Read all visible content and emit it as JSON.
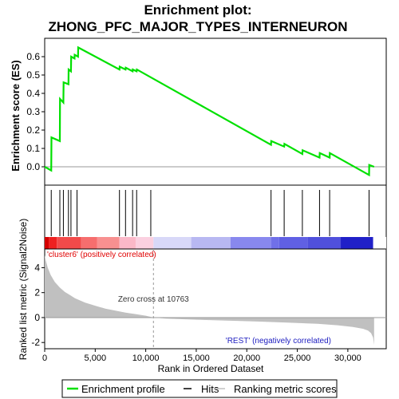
{
  "title_line1": "Enrichment plot:",
  "title_line2": "ZHONG_PFC_MAJOR_TYPES_INTERNEURON",
  "colors": {
    "profile": "#00e000",
    "hits": "#000000",
    "metric": "#c0c0c0",
    "zero_line": "#999999",
    "pos_label": "#e00000",
    "neg_label": "#2020c0"
  },
  "chart_data": {
    "type": "line",
    "title": "Enrichment plot: ZHONG_PFC_MAJOR_TYPES_INTERNEURON",
    "xlabel": "Rank in Ordered Dataset",
    "x_ticks": [
      "0",
      "5,000",
      "10,000",
      "15,000",
      "20,000",
      "25,000",
      "30,000"
    ],
    "x_tick_values": [
      0,
      5000,
      10000,
      15000,
      20000,
      25000,
      30000
    ],
    "xlim": [
      0,
      33800
    ],
    "es_panel": {
      "ylabel": "Enrichment score (ES)",
      "ylim": [
        -0.1,
        0.7
      ],
      "y_ticks": [
        "0.0",
        "0.1",
        "0.2",
        "0.3",
        "0.4",
        "0.5",
        "0.6"
      ],
      "y_tick_values": [
        0,
        0.1,
        0.2,
        0.3,
        0.4,
        0.5,
        0.6
      ],
      "x": [
        0,
        650,
        670,
        1500,
        1520,
        1850,
        1870,
        2350,
        2370,
        2600,
        2620,
        2950,
        2970,
        3300,
        3320,
        7400,
        7420,
        8000,
        8020,
        8700,
        8720,
        9100,
        9120,
        22400,
        22420,
        23700,
        23720,
        25500,
        25520,
        27200,
        27220,
        28200,
        28220,
        32100,
        32120,
        32600
      ],
      "y": [
        0,
        -0.02,
        0.16,
        0.14,
        0.37,
        0.35,
        0.46,
        0.45,
        0.53,
        0.52,
        0.6,
        0.59,
        0.61,
        0.6,
        0.65,
        0.53,
        0.545,
        0.53,
        0.54,
        0.52,
        0.53,
        0.52,
        0.53,
        0.12,
        0.14,
        0.11,
        0.125,
        0.07,
        0.09,
        0.05,
        0.075,
        0.05,
        0.075,
        -0.045,
        0.01,
        0.0
      ]
    },
    "hits": [
      650,
      1500,
      1850,
      2350,
      2600,
      3200,
      7400,
      8000,
      8700,
      9100,
      10500,
      22400,
      23700,
      25500,
      27200,
      28200,
      32100
    ],
    "metric_panel": {
      "ylabel": "Ranked list metric (Signal2Noise)",
      "ylim": [
        -2.5,
        5.5
      ],
      "y_ticks": [
        "-2",
        "0",
        "2",
        "4"
      ],
      "y_tick_values": [
        -2,
        0,
        2,
        4
      ],
      "x": [
        0,
        100,
        300,
        600,
        1000,
        1500,
        2000,
        2500,
        3000,
        4000,
        5000,
        6000,
        7000,
        8000,
        9000,
        10000,
        10763,
        12000,
        15000,
        18000,
        21000,
        24000,
        27000,
        29000,
        30500,
        31500,
        32000,
        32300,
        32500,
        32600
      ],
      "y": [
        5.0,
        4.6,
        4.0,
        3.4,
        2.85,
        2.4,
        2.05,
        1.8,
        1.55,
        1.2,
        0.95,
        0.72,
        0.55,
        0.4,
        0.28,
        0.15,
        0.0,
        -0.08,
        -0.17,
        -0.25,
        -0.32,
        -0.4,
        -0.5,
        -0.62,
        -0.75,
        -0.9,
        -1.05,
        -1.25,
        -1.6,
        -2.2
      ],
      "zero_cross_label": "Zero cross at 10763",
      "zero_cross": 10763,
      "pos_label": "'cluster6' (positively correlated)",
      "neg_label": "'REST' (negatively correlated)"
    },
    "legend": [
      {
        "name": "Enrichment profile",
        "color": "#00e000"
      },
      {
        "name": "Hits",
        "color": "#000000"
      },
      {
        "name": "Ranking metric scores",
        "color": "#c0c0c0"
      }
    ],
    "legend_position": "bottom",
    "grid": false
  }
}
